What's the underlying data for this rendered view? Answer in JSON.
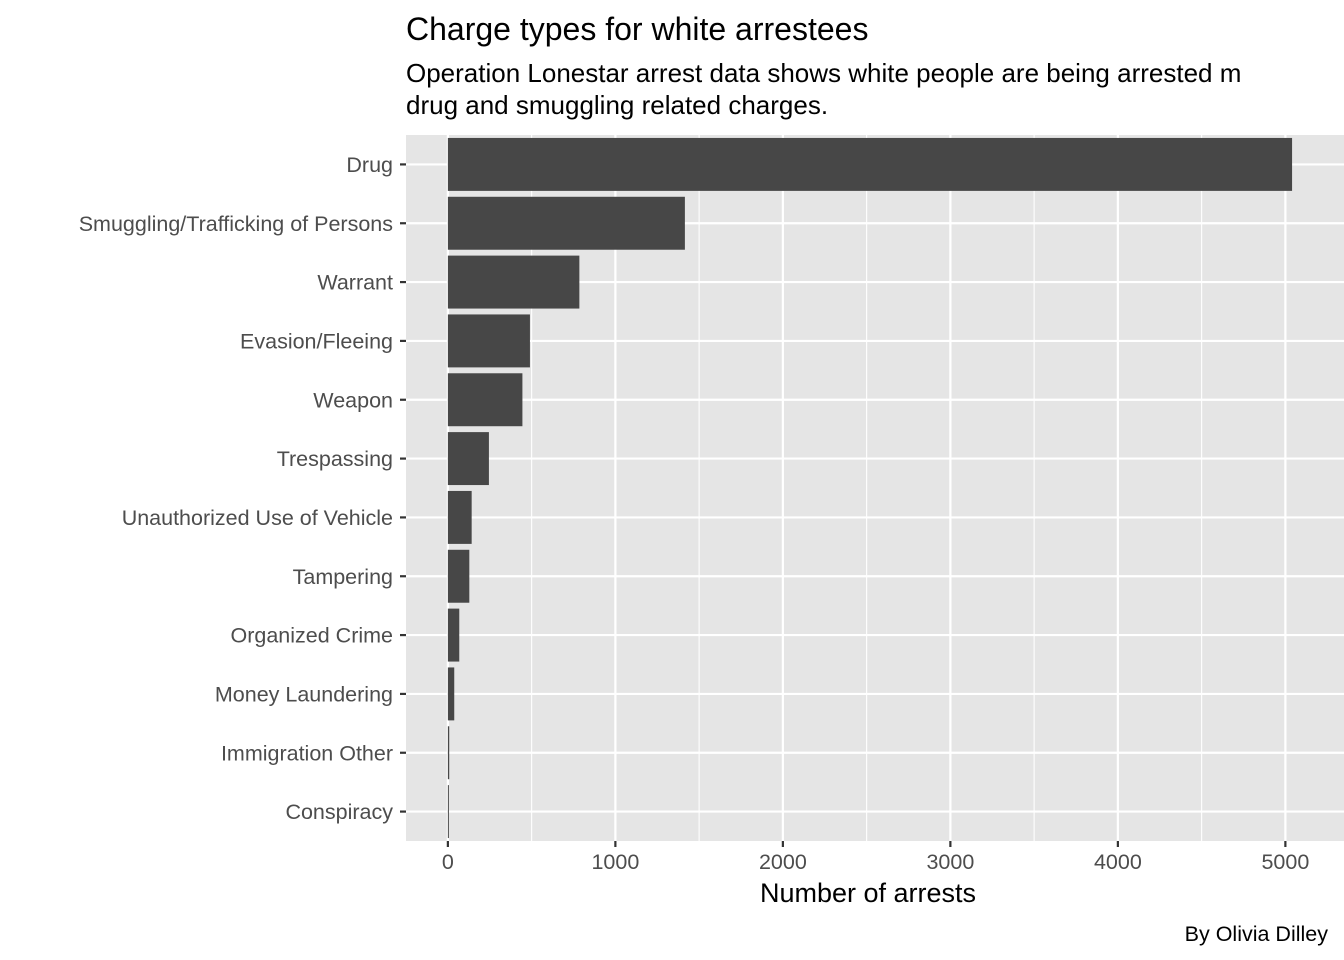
{
  "chart_data": {
    "type": "bar",
    "orientation": "horizontal",
    "title": "Charge types for white arrestees",
    "subtitle_lines": [
      "Operation Lonestar arrest data shows white people are being arrested m",
      "drug and smuggling related charges."
    ],
    "xlabel": "Number of arrests",
    "ylabel": "",
    "caption": "By Olivia Dilley",
    "categories": [
      "Drug",
      "Smuggling/Trafficking of Persons",
      "Warrant",
      "Evasion/Fleeing",
      "Weapon",
      "Trespassing",
      "Unauthorized Use of Vehicle",
      "Tampering",
      "Organized Crime",
      "Money Laundering",
      "Immigration Other",
      "Conspiracy"
    ],
    "values": [
      5040,
      1415,
      785,
      490,
      445,
      245,
      142,
      128,
      68,
      38,
      8,
      6
    ],
    "xlim": [
      -250,
      5350
    ],
    "xticks": [
      0,
      1000,
      2000,
      3000,
      4000,
      5000
    ],
    "xtick_labels": [
      "0",
      "1000",
      "2000",
      "3000",
      "4000",
      "5000"
    ],
    "grid": true,
    "colors": {
      "panel_background": "#e5e5e5",
      "grid_line": "#ffffff",
      "bar": "#474747",
      "tick_text": "#4d4d4d"
    }
  }
}
